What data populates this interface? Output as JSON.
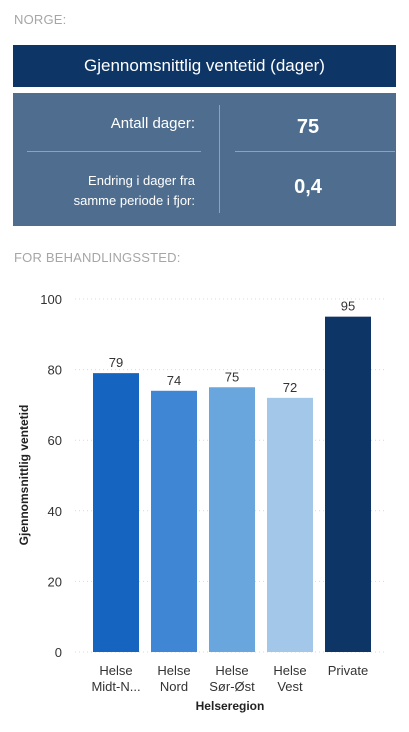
{
  "sections": {
    "norge": "NORGE:",
    "behandlingssted": "FOR BEHANDLINGSSTED:"
  },
  "kpi": {
    "title": "Gjennomsnittlig ventetid (dager)",
    "days_label": "Antall dager:",
    "days_value": "75",
    "change_label_line1": "Endring i dager fra",
    "change_label_line2": "samme periode i fjor:",
    "change_value": "0,4"
  },
  "chart_data": {
    "type": "bar",
    "categories": [
      [
        "Helse",
        "Midt-N..."
      ],
      [
        "Helse",
        "Nord"
      ],
      [
        "Helse",
        "Sør-Øst"
      ],
      [
        "Helse",
        "Vest"
      ],
      [
        "Private"
      ]
    ],
    "values": [
      79,
      74,
      75,
      72,
      95
    ],
    "colors": [
      "#1565c0",
      "#3f87d4",
      "#6aa6de",
      "#a3c7e8",
      "#0d3667"
    ],
    "xlabel": "Helseregion",
    "ylabel": "Gjennomsnittlig ventetid",
    "ylim": [
      0,
      100
    ],
    "yticks": [
      0,
      20,
      40,
      60,
      80,
      100
    ],
    "grid": true,
    "data_labels": true
  }
}
